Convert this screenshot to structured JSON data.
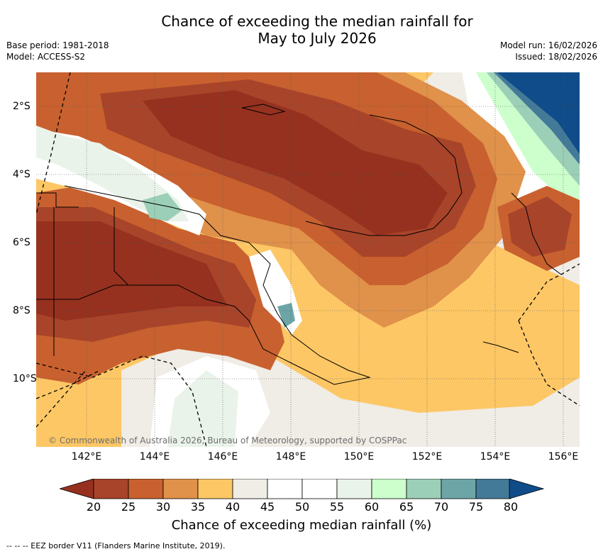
{
  "title_line1": "Chance of exceeding the median rainfall for",
  "title_line2": "May to July 2026",
  "base_period": "Base period: 1981-2018",
  "model": "Model: ACCESS-S2",
  "model_run": "Model run: 16/02/2026",
  "issued": "Issued: 18/02/2026",
  "copyright": "© Commonwealth of Australia 2026, Bureau of Meteorology, supported by COSPPac",
  "lon_labels": [
    "142°E",
    "144°E",
    "146°E",
    "148°E",
    "150°E",
    "152°E",
    "154°E",
    "156°E"
  ],
  "lat_labels": [
    "2°S",
    "4°S",
    "6°S",
    "8°S",
    "10°S"
  ],
  "colorbar": {
    "ticks": [
      "20",
      "25",
      "30",
      "35",
      "40",
      "45",
      "50",
      "55",
      "60",
      "65",
      "70",
      "75",
      "80"
    ],
    "colors": [
      "#a8442a",
      "#c8612f",
      "#e0914a",
      "#fdc765",
      "#f0ece6",
      "#ffffff",
      "#ffffff",
      "#eaf3ea",
      "#ccffcc",
      "#9ccfb7",
      "#6da5a6",
      "#437a98"
    ],
    "under_color": "#96311f",
    "over_color": "#0f4c89",
    "label": "Chance of exceeding median rainfall (%)"
  },
  "footer": "--  --  -- EEZ border V11 (Flanders Marine Institute, 2019)."
}
